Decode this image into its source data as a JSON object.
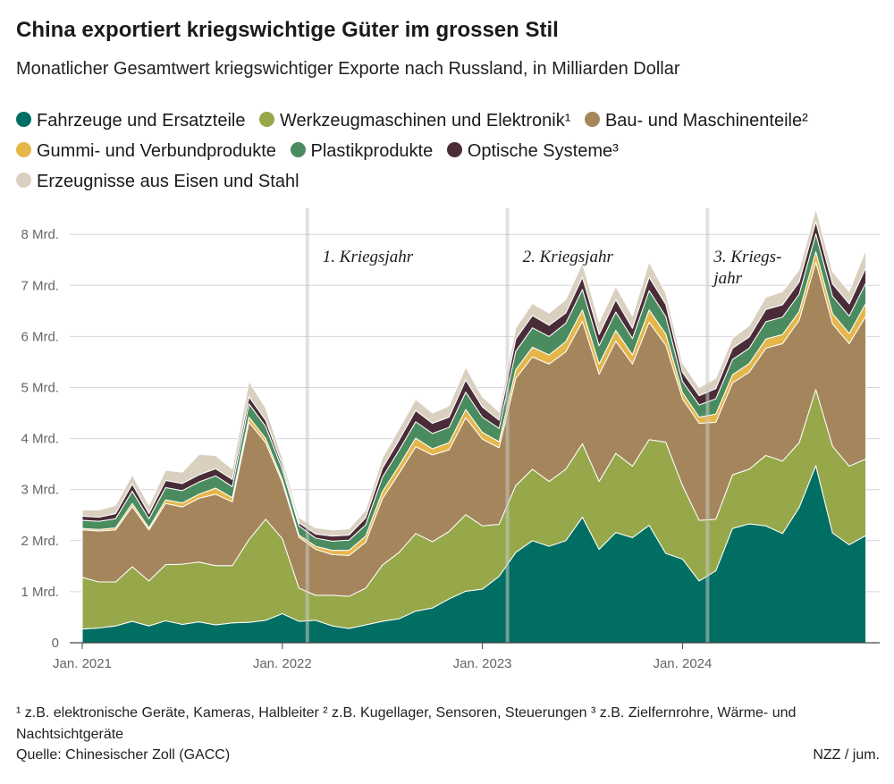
{
  "header": {
    "title": "China exportiert kriegswichtige Güter im grossen Stil",
    "subtitle": "Monatlicher Gesamtwert kriegswichtiger Exporte nach Russland, in Milliarden Dollar"
  },
  "footer": {
    "footnote": "¹ z.B. elektronische Geräte, Kameras, Halbleiter ² z.B. Kugellager, Sensoren, Steuerungen ³ z.B. Zielfernrohre, Wärme- und Nachtsichtgeräte",
    "source": "Quelle: Chinesischer Zoll (GACC)",
    "credit": "NZZ / jum."
  },
  "chart_data": {
    "type": "area",
    "stacked": true,
    "unit": "Milliarden Dollar",
    "x": [
      "2021-01",
      "2021-02",
      "2021-03",
      "2021-04",
      "2021-05",
      "2021-06",
      "2021-07",
      "2021-08",
      "2021-09",
      "2021-10",
      "2021-11",
      "2021-12",
      "2022-01",
      "2022-02",
      "2022-03",
      "2022-04",
      "2022-05",
      "2022-06",
      "2022-07",
      "2022-08",
      "2022-09",
      "2022-10",
      "2022-11",
      "2022-12",
      "2023-01",
      "2023-02",
      "2023-03",
      "2023-04",
      "2023-05",
      "2023-06",
      "2023-07",
      "2023-08",
      "2023-09",
      "2023-10",
      "2023-11",
      "2023-12",
      "2024-01",
      "2024-02",
      "2024-03",
      "2024-04",
      "2024-05",
      "2024-06",
      "2024-07",
      "2024-08",
      "2024-09",
      "2024-10",
      "2024-11",
      "2024-12"
    ],
    "ylim": [
      0,
      8.5
    ],
    "yticks": [
      {
        "value": 0,
        "label": "0"
      },
      {
        "value": 1,
        "label": "1 Mrd."
      },
      {
        "value": 2,
        "label": "2 Mrd."
      },
      {
        "value": 3,
        "label": "3 Mrd."
      },
      {
        "value": 4,
        "label": "4 Mrd."
      },
      {
        "value": 5,
        "label": "5 Mrd."
      },
      {
        "value": 6,
        "label": "6 Mrd."
      },
      {
        "value": 7,
        "label": "7 Mrd."
      },
      {
        "value": 8,
        "label": "8 Mrd."
      }
    ],
    "xticks": [
      {
        "index": 0,
        "label": "Jan. 2021"
      },
      {
        "index": 12,
        "label": "Jan. 2022"
      },
      {
        "index": 24,
        "label": "Jan. 2023"
      },
      {
        "index": 36,
        "label": "Jan. 2024"
      }
    ],
    "grid": true,
    "legend_position": "top",
    "series": [
      {
        "name": "Fahrzeuge und Ersatzteile",
        "color": "#006e62",
        "values": [
          0.27,
          0.29,
          0.33,
          0.42,
          0.33,
          0.43,
          0.36,
          0.41,
          0.35,
          0.39,
          0.4,
          0.44,
          0.57,
          0.42,
          0.44,
          0.33,
          0.28,
          0.35,
          0.42,
          0.47,
          0.62,
          0.68,
          0.86,
          1.01,
          1.05,
          1.3,
          1.77,
          2.0,
          1.89,
          2.0,
          2.46,
          1.83,
          2.16,
          2.06,
          2.3,
          1.75,
          1.64,
          1.21,
          1.41,
          2.24,
          2.33,
          2.29,
          2.14,
          2.65,
          3.47,
          2.15,
          1.92,
          2.1
        ]
      },
      {
        "name": "Werkzeugmaschinen und Elektronik¹",
        "color": "#96a84a",
        "values": [
          1.01,
          0.9,
          0.86,
          1.07,
          0.88,
          1.1,
          1.18,
          1.17,
          1.16,
          1.12,
          1.62,
          1.98,
          1.47,
          0.65,
          0.49,
          0.6,
          0.63,
          0.72,
          1.1,
          1.3,
          1.52,
          1.3,
          1.32,
          1.5,
          1.24,
          1.02,
          1.31,
          1.4,
          1.27,
          1.4,
          1.44,
          1.33,
          1.55,
          1.4,
          1.68,
          2.18,
          1.44,
          1.19,
          1.01,
          1.05,
          1.07,
          1.38,
          1.42,
          1.27,
          1.49,
          1.7,
          1.54,
          1.5
        ]
      },
      {
        "name": "Bau- und Maschinenteile²",
        "color": "#a5865c",
        "values": [
          0.93,
          1.0,
          1.02,
          1.18,
          1.0,
          1.2,
          1.12,
          1.25,
          1.4,
          1.25,
          2.3,
          1.5,
          1.1,
          1.0,
          0.9,
          0.8,
          0.8,
          0.9,
          1.3,
          1.55,
          1.7,
          1.7,
          1.6,
          1.9,
          1.7,
          1.5,
          2.1,
          2.2,
          2.3,
          2.3,
          2.4,
          2.1,
          2.2,
          2.0,
          2.3,
          1.9,
          1.7,
          1.9,
          1.9,
          1.8,
          1.9,
          2.1,
          2.3,
          2.4,
          2.5,
          2.4,
          2.4,
          2.8
        ]
      },
      {
        "name": "Gummi- und Verbundprodukte",
        "color": "#e5b64a",
        "values": [
          0.03,
          0.03,
          0.04,
          0.06,
          0.04,
          0.07,
          0.08,
          0.08,
          0.12,
          0.08,
          0.1,
          0.08,
          0.06,
          0.04,
          0.06,
          0.08,
          0.1,
          0.12,
          0.14,
          0.15,
          0.17,
          0.12,
          0.14,
          0.16,
          0.13,
          0.12,
          0.17,
          0.19,
          0.18,
          0.2,
          0.22,
          0.2,
          0.21,
          0.18,
          0.24,
          0.22,
          0.12,
          0.12,
          0.16,
          0.16,
          0.17,
          0.18,
          0.18,
          0.17,
          0.2,
          0.2,
          0.2,
          0.25
        ]
      },
      {
        "name": "Plastikprodukte",
        "color": "#4a8c5f",
        "values": [
          0.16,
          0.16,
          0.18,
          0.24,
          0.18,
          0.24,
          0.24,
          0.24,
          0.24,
          0.22,
          0.26,
          0.24,
          0.2,
          0.18,
          0.16,
          0.18,
          0.2,
          0.22,
          0.28,
          0.3,
          0.32,
          0.3,
          0.3,
          0.34,
          0.3,
          0.26,
          0.36,
          0.38,
          0.36,
          0.36,
          0.4,
          0.36,
          0.36,
          0.32,
          0.38,
          0.34,
          0.22,
          0.24,
          0.3,
          0.3,
          0.3,
          0.34,
          0.34,
          0.34,
          0.35,
          0.34,
          0.34,
          0.4
        ]
      },
      {
        "name": "Optische Systeme³",
        "color": "#4a2c38",
        "values": [
          0.08,
          0.08,
          0.1,
          0.14,
          0.1,
          0.14,
          0.14,
          0.14,
          0.14,
          0.14,
          0.14,
          0.12,
          0.08,
          0.06,
          0.08,
          0.1,
          0.1,
          0.14,
          0.18,
          0.2,
          0.22,
          0.2,
          0.2,
          0.24,
          0.2,
          0.16,
          0.24,
          0.24,
          0.22,
          0.2,
          0.24,
          0.22,
          0.24,
          0.2,
          0.26,
          0.24,
          0.18,
          0.18,
          0.2,
          0.22,
          0.22,
          0.24,
          0.24,
          0.24,
          0.24,
          0.24,
          0.24,
          0.3
        ]
      },
      {
        "name": "Erzeugnisse aus Eisen und Stahl",
        "color": "#d9d0c0",
        "values": [
          0.12,
          0.14,
          0.16,
          0.18,
          0.16,
          0.2,
          0.22,
          0.4,
          0.26,
          0.2,
          0.3,
          0.24,
          0.14,
          0.1,
          0.12,
          0.12,
          0.12,
          0.15,
          0.2,
          0.22,
          0.22,
          0.2,
          0.22,
          0.25,
          0.2,
          0.16,
          0.22,
          0.24,
          0.24,
          0.26,
          0.28,
          0.24,
          0.26,
          0.24,
          0.3,
          0.22,
          0.18,
          0.16,
          0.2,
          0.2,
          0.22,
          0.24,
          0.26,
          0.24,
          0.25,
          0.24,
          0.24,
          0.35
        ]
      }
    ],
    "annotations": [
      {
        "at_index": 13.5,
        "label_lines": [
          "1. Kriegsjahr"
        ]
      },
      {
        "at_index": 25.5,
        "label_lines": [
          "2. Kriegsjahr"
        ]
      },
      {
        "at_index": 37.5,
        "label_lines": [
          "3. Kriegs-",
          "jahr"
        ]
      }
    ]
  }
}
